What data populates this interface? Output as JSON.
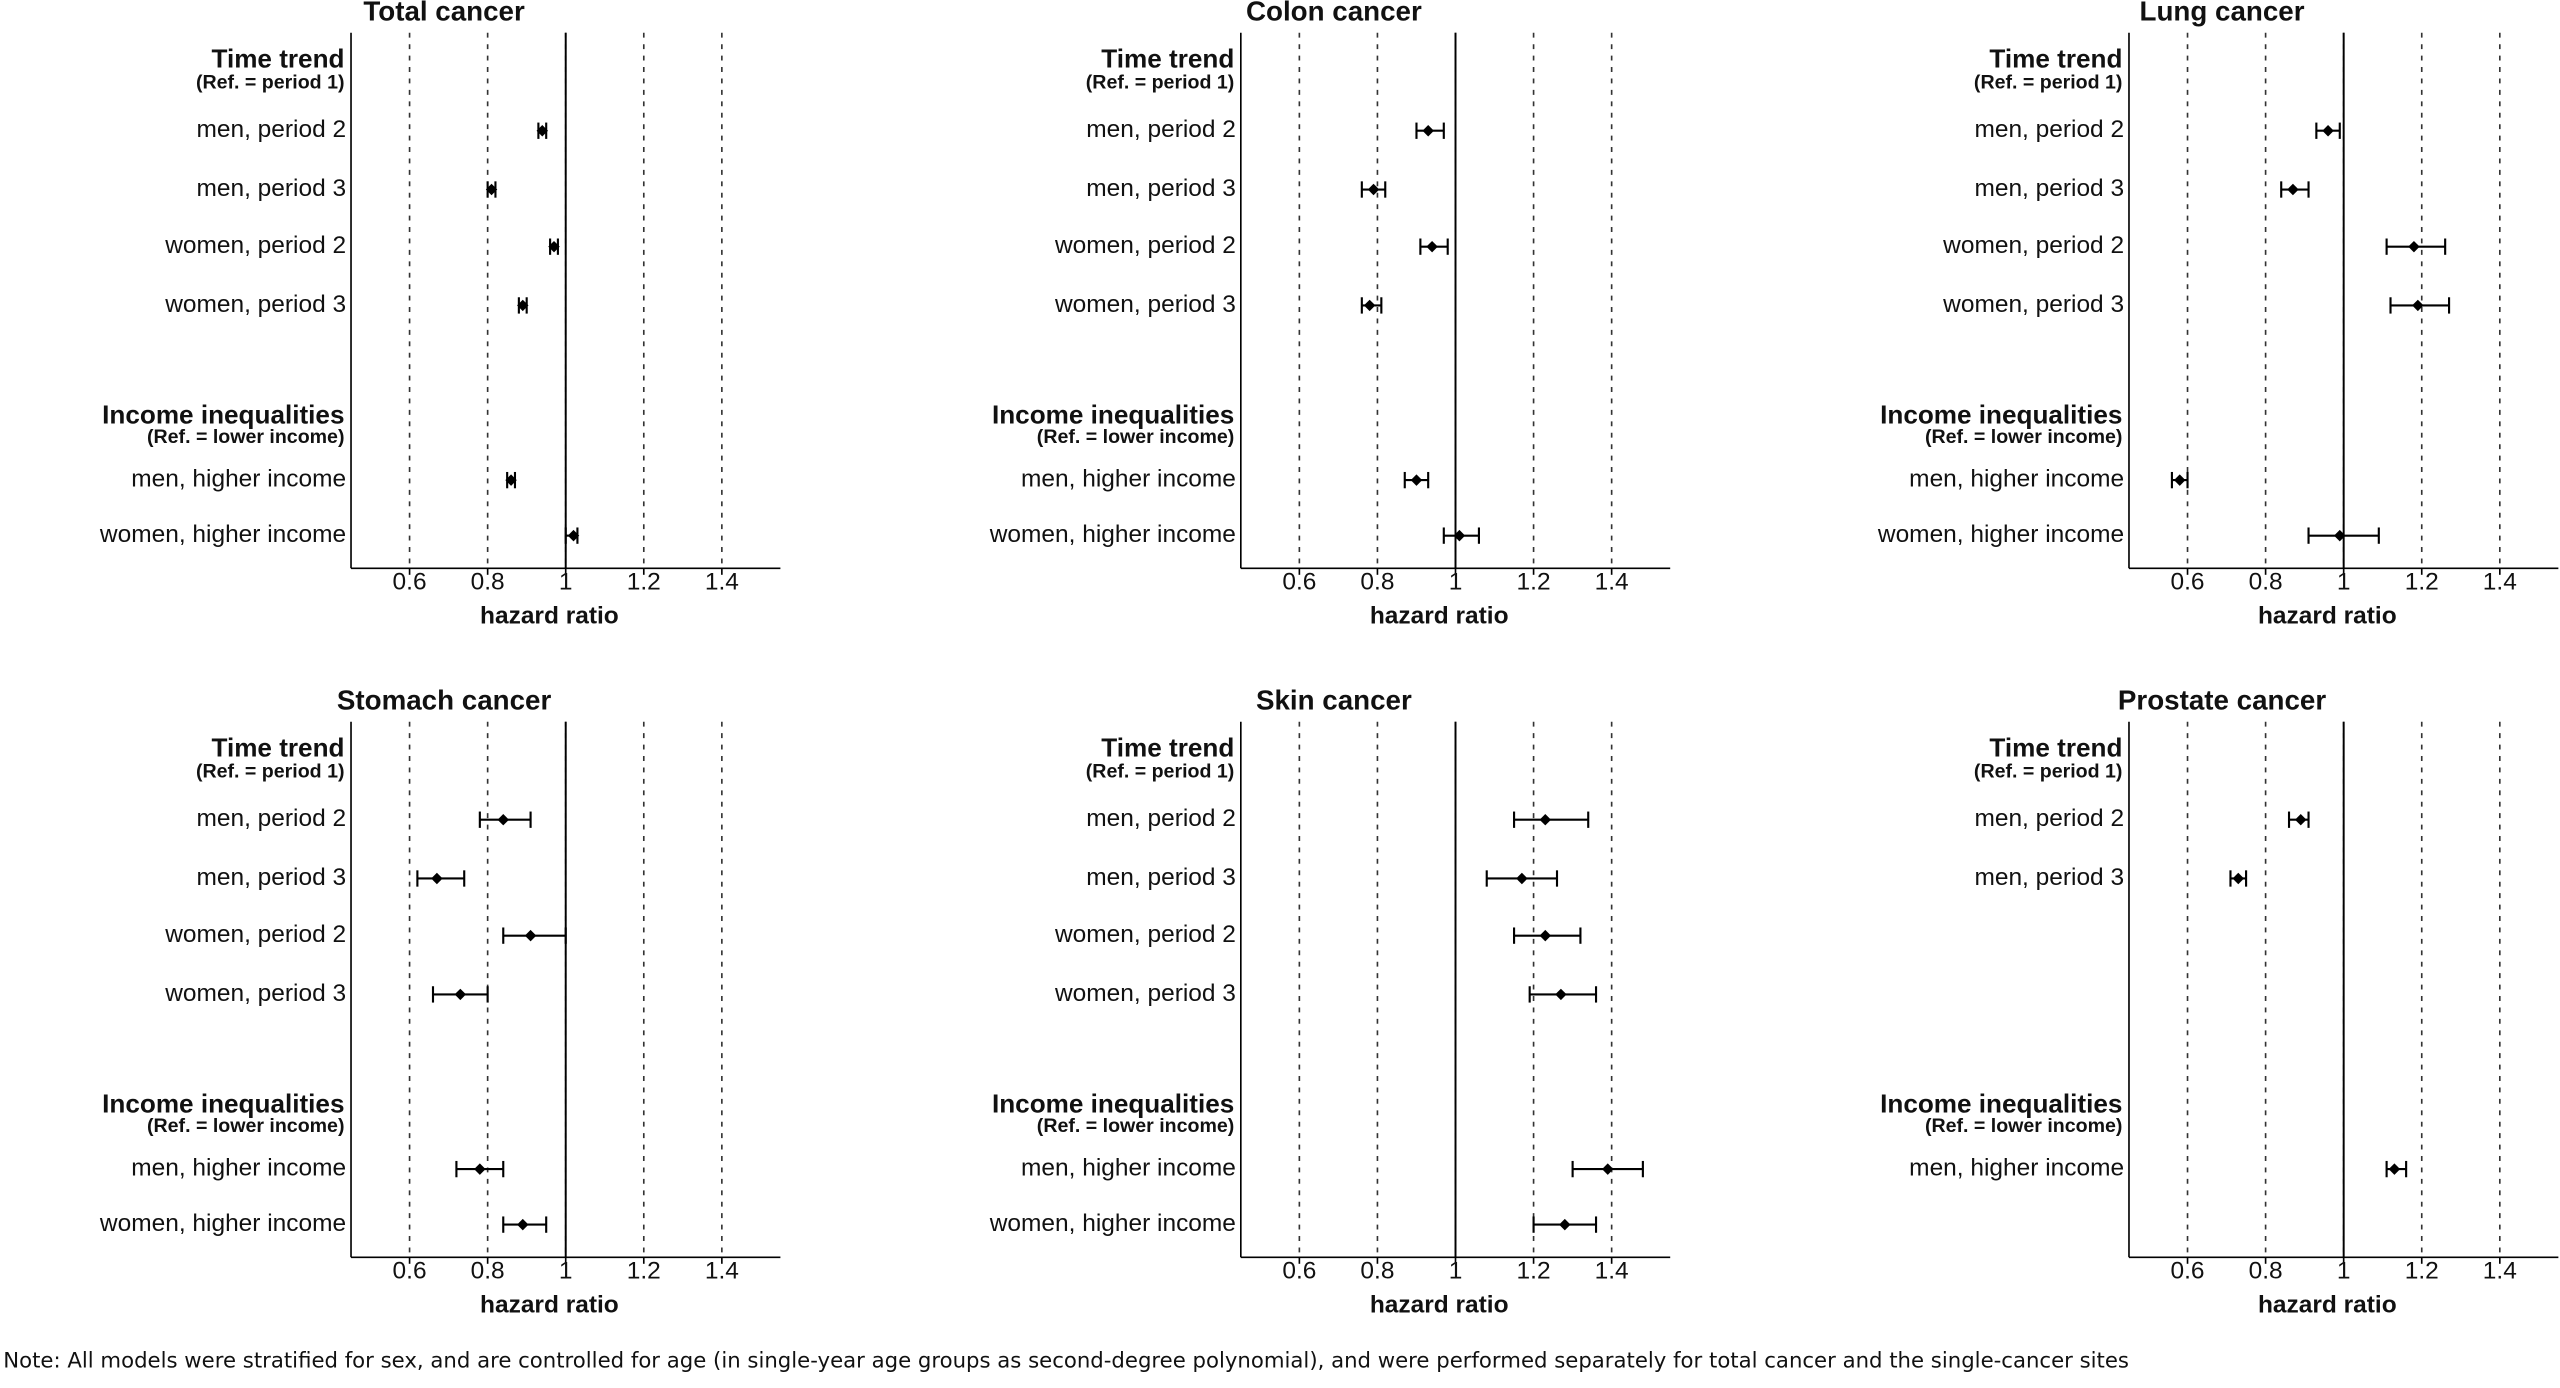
{
  "chart_data": [
    {
      "type": "forest",
      "title": "Total cancer",
      "xlabel": "hazard ratio",
      "xlim": [
        0.45,
        1.55
      ],
      "xticks": [
        0.6,
        0.8,
        1,
        1.2,
        1.4
      ],
      "ref_line": 1,
      "grid": true,
      "color": "#000000",
      "groups": [
        {
          "title": "Time trend",
          "subtitle": "(Ref. = period 1)",
          "categories": [
            "men, period 2",
            "men, period 3",
            "women, period 2",
            "women, period 3"
          ],
          "values": [
            0.94,
            0.81,
            0.97,
            0.89
          ],
          "lower": [
            0.93,
            0.8,
            0.96,
            0.88
          ],
          "upper": [
            0.95,
            0.82,
            0.98,
            0.9
          ]
        },
        {
          "title": "Income inequalities",
          "subtitle": "(Ref. = lower income)",
          "categories": [
            "men, higher income",
            "women, higher income"
          ],
          "values": [
            0.86,
            1.02
          ],
          "lower": [
            0.85,
            1.0
          ],
          "upper": [
            0.87,
            1.03
          ]
        }
      ]
    },
    {
      "type": "forest",
      "title": "Colon cancer",
      "xlabel": "hazard ratio",
      "xlim": [
        0.45,
        1.55
      ],
      "xticks": [
        0.6,
        0.8,
        1,
        1.2,
        1.4
      ],
      "ref_line": 1,
      "grid": true,
      "color": "#000000",
      "groups": [
        {
          "title": "Time trend",
          "subtitle": "(Ref. = period 1)",
          "categories": [
            "men, period 2",
            "men, period 3",
            "women, period 2",
            "women, period 3"
          ],
          "values": [
            0.93,
            0.79,
            0.94,
            0.78
          ],
          "lower": [
            0.9,
            0.76,
            0.91,
            0.76
          ],
          "upper": [
            0.97,
            0.82,
            0.98,
            0.81
          ]
        },
        {
          "title": "Income inequalities",
          "subtitle": "(Ref. = lower income)",
          "categories": [
            "men, higher income",
            "women, higher income"
          ],
          "values": [
            0.9,
            1.01
          ],
          "lower": [
            0.87,
            0.97
          ],
          "upper": [
            0.93,
            1.06
          ]
        }
      ]
    },
    {
      "type": "forest",
      "title": "Lung cancer",
      "xlabel": "hazard ratio",
      "xlim": [
        0.45,
        1.55
      ],
      "xticks": [
        0.6,
        0.8,
        1,
        1.2,
        1.4
      ],
      "ref_line": 1,
      "grid": true,
      "color": "#000000",
      "groups": [
        {
          "title": "Time trend",
          "subtitle": "(Ref. = period 1)",
          "categories": [
            "men, period 2",
            "men, period 3",
            "women, period 2",
            "women, period 3"
          ],
          "values": [
            0.96,
            0.87,
            1.18,
            1.19
          ],
          "lower": [
            0.93,
            0.84,
            1.11,
            1.12
          ],
          "upper": [
            0.99,
            0.91,
            1.26,
            1.27
          ]
        },
        {
          "title": "Income inequalities",
          "subtitle": "(Ref. = lower income)",
          "categories": [
            "men, higher income",
            "women, higher income"
          ],
          "values": [
            0.58,
            0.99
          ],
          "lower": [
            0.56,
            0.91
          ],
          "upper": [
            0.6,
            1.09
          ]
        }
      ]
    },
    {
      "type": "forest",
      "title": "Stomach cancer",
      "xlabel": "hazard ratio",
      "xlim": [
        0.45,
        1.55
      ],
      "xticks": [
        0.6,
        0.8,
        1,
        1.2,
        1.4
      ],
      "ref_line": 1,
      "grid": true,
      "color": "#000000",
      "groups": [
        {
          "title": "Time trend",
          "subtitle": "(Ref. = period 1)",
          "categories": [
            "men, period 2",
            "men, period 3",
            "women, period 2",
            "women, period 3"
          ],
          "values": [
            0.84,
            0.67,
            0.91,
            0.73
          ],
          "lower": [
            0.78,
            0.62,
            0.84,
            0.66
          ],
          "upper": [
            0.91,
            0.74,
            1.0,
            0.8
          ]
        },
        {
          "title": "Income inequalities",
          "subtitle": "(Ref. = lower income)",
          "categories": [
            "men, higher income",
            "women, higher income"
          ],
          "values": [
            0.78,
            0.89
          ],
          "lower": [
            0.72,
            0.84
          ],
          "upper": [
            0.84,
            0.95
          ]
        }
      ]
    },
    {
      "type": "forest",
      "title": "Skin cancer",
      "xlabel": "hazard ratio",
      "xlim": [
        0.45,
        1.55
      ],
      "xticks": [
        0.6,
        0.8,
        1,
        1.2,
        1.4
      ],
      "ref_line": 1,
      "grid": true,
      "color": "#000000",
      "groups": [
        {
          "title": "Time trend",
          "subtitle": "(Ref. = period 1)",
          "categories": [
            "men, period 2",
            "men, period 3",
            "women, period 2",
            "women, period 3"
          ],
          "values": [
            1.23,
            1.17,
            1.23,
            1.27
          ],
          "lower": [
            1.15,
            1.08,
            1.15,
            1.19
          ],
          "upper": [
            1.34,
            1.26,
            1.32,
            1.36
          ]
        },
        {
          "title": "Income inequalities",
          "subtitle": "(Ref. = lower income)",
          "categories": [
            "men, higher income",
            "women, higher income"
          ],
          "values": [
            1.39,
            1.28
          ],
          "lower": [
            1.3,
            1.2
          ],
          "upper": [
            1.48,
            1.36
          ]
        }
      ]
    },
    {
      "type": "forest",
      "title": "Prostate cancer",
      "xlabel": "hazard ratio",
      "xlim": [
        0.45,
        1.55
      ],
      "xticks": [
        0.6,
        0.8,
        1,
        1.2,
        1.4
      ],
      "ref_line": 1,
      "grid": true,
      "color": "#000000",
      "groups": [
        {
          "title": "Time trend",
          "subtitle": "(Ref. = period 1)",
          "categories": [
            "men, period 2",
            "men, period 3"
          ],
          "values": [
            0.89,
            0.73
          ],
          "lower": [
            0.86,
            0.71
          ],
          "upper": [
            0.91,
            0.75
          ]
        },
        {
          "title": "Income inequalities",
          "subtitle": "(Ref. = lower income)",
          "categories": [
            "men, higher income"
          ],
          "values": [
            1.13
          ],
          "lower": [
            1.11
          ],
          "upper": [
            1.16
          ]
        }
      ]
    }
  ],
  "note": "Note: All models were stratified for sex, and are controlled for age (in single-year age groups as second-degree polynomial), and were performed separately for total cancer and the single-cancer sites"
}
